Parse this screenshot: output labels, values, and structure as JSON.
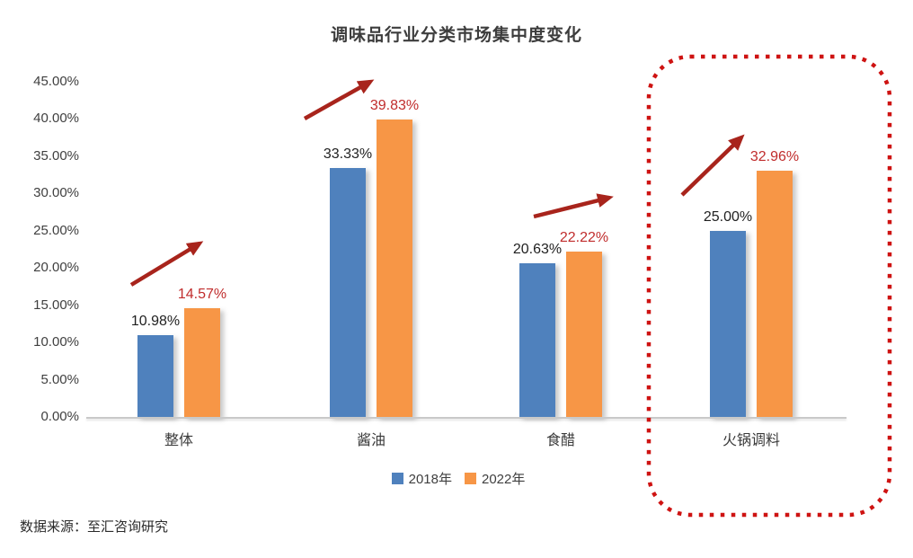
{
  "title": "调味品行业分类市场集中度变化",
  "source_note": "数据来源：至汇咨询研究",
  "chart_data": {
    "type": "bar",
    "title": "调味品行业分类市场集中度变化",
    "categories": [
      "整体",
      "酱油",
      "食醋",
      "火锅调料"
    ],
    "series": [
      {
        "name": "2018年",
        "color": "#4F81BD",
        "values": [
          10.98,
          33.33,
          20.63,
          25.0
        ],
        "value_labels": [
          "10.98%",
          "33.33%",
          "20.63%",
          "25.00%"
        ],
        "label_color": "#1f1f1f"
      },
      {
        "name": "2022年",
        "color": "#F79646",
        "values": [
          14.57,
          39.83,
          22.22,
          32.96
        ],
        "value_labels": [
          "14.57%",
          "39.83%",
          "22.22%",
          "32.96%"
        ],
        "label_color": "#C02C2C"
      }
    ],
    "xlabel": "",
    "ylabel": "",
    "ylim": [
      0,
      45
    ],
    "ytick_step": 5,
    "ytick_labels": [
      "0.00%",
      "5.00%",
      "10.00%",
      "15.00%",
      "20.00%",
      "25.00%",
      "30.00%",
      "35.00%",
      "40.00%",
      "45.00%"
    ],
    "grid": false,
    "legend_position": "bottom",
    "annotations": {
      "trend_arrows_note": "red upward arrow above each category pair indicating increase",
      "arrow_color": "#A8241C",
      "highlight_note": "red dotted rounded rectangle around 火锅调料 group",
      "highlight_color": "#CE1312"
    }
  }
}
